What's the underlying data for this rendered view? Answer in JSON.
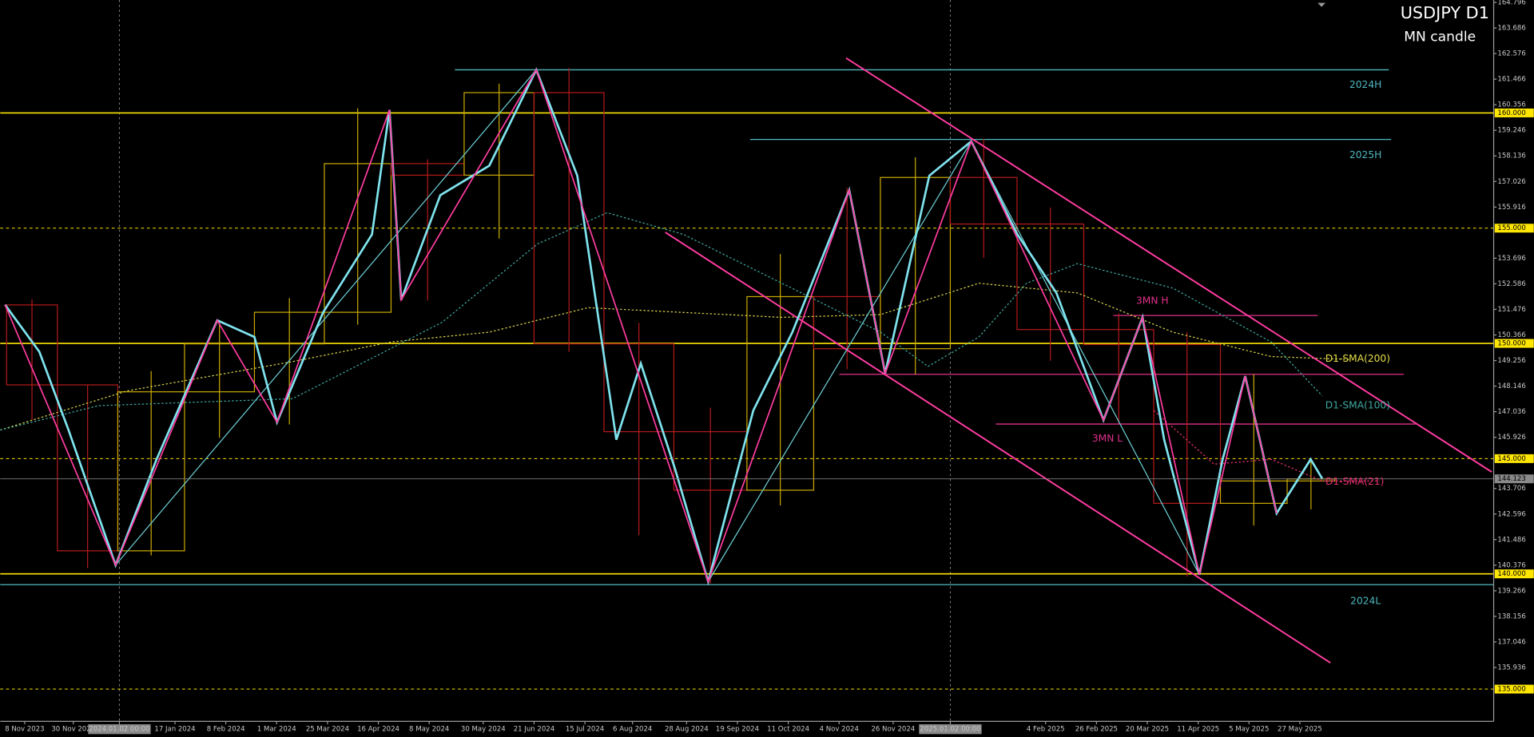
{
  "chart_data": {
    "type": "candlestick",
    "title": "USDJPY D1",
    "subtitle": "MN candle",
    "xlim": [
      0,
      470
    ],
    "ylim": [
      133.6,
      164.9
    ],
    "grid": false,
    "xticks": [
      {
        "value": 7.7,
        "label": "8 Nov 2023"
      },
      {
        "value": 23,
        "label": "30 Nov 2023"
      },
      {
        "value": 37.5,
        "label": "2024.01.02 00:00"
      },
      {
        "value": 55,
        "label": "17 Jan 2024"
      },
      {
        "value": 71,
        "label": "8 Feb 2024"
      },
      {
        "value": 87,
        "label": "1 Mar 2024"
      },
      {
        "value": 103,
        "label": "25 Mar 2024"
      },
      {
        "value": 119,
        "label": "16 Apr 2024"
      },
      {
        "value": 135,
        "label": "8 May 2024"
      },
      {
        "value": 152,
        "label": "30 May 2024"
      },
      {
        "value": 168,
        "label": "21 Jun 2024"
      },
      {
        "value": 184,
        "label": "15 Jul 2024"
      },
      {
        "value": 199,
        "label": "6 Aug 2024"
      },
      {
        "value": 216,
        "label": "28 Aug 2024"
      },
      {
        "value": 232,
        "label": "19 Sep 2024"
      },
      {
        "value": 248,
        "label": "11 Oct 2024"
      },
      {
        "value": 264,
        "label": "4 Nov 2024"
      },
      {
        "value": 281,
        "label": "26 Nov 2024"
      },
      {
        "value": 299,
        "label": "2025.01.02 00:00"
      },
      {
        "value": 329,
        "label": "4 Feb 2025"
      },
      {
        "value": 345,
        "label": "26 Feb 2025"
      },
      {
        "value": 361,
        "label": "20 Mar 2025"
      },
      {
        "value": 377,
        "label": "11 Apr 2025"
      },
      {
        "value": 393,
        "label": "5 May 2025"
      },
      {
        "value": 409,
        "label": "27 May 2025"
      }
    ],
    "yticks": [
      164.796,
      163.686,
      162.576,
      161.466,
      160.356,
      159.246,
      158.136,
      157.026,
      155.916,
      153.696,
      152.586,
      151.476,
      150.366,
      149.256,
      148.146,
      147.036,
      145.926,
      143.706,
      142.596,
      141.486,
      140.376,
      139.266,
      138.156,
      137.046,
      135.936
    ],
    "levels": [
      {
        "value": 160,
        "label": "160.000",
        "style": "solid"
      },
      {
        "value": 155,
        "label": "155.000",
        "style": "dotted"
      },
      {
        "value": 150,
        "label": "150.000",
        "style": "solid"
      },
      {
        "value": 145,
        "label": "145.000",
        "style": "dotted"
      },
      {
        "value": 140,
        "label": "140.000",
        "style": "solid"
      },
      {
        "value": 135,
        "label": "135.000",
        "style": "dotted"
      }
    ],
    "level_color": "#ffe600",
    "current_price": 144.123,
    "candles": {
      "edges": [
        2,
        18,
        37,
        58,
        80,
        102,
        123,
        146,
        168,
        190,
        212,
        235,
        256,
        277,
        299,
        320,
        341,
        363,
        384,
        405,
        420
      ],
      "open": [
        151.67,
        148.2,
        141.0,
        147.9,
        149.98,
        151.35,
        157.8,
        157.3,
        160.88,
        149.98,
        146.17,
        143.63,
        152.03,
        149.77,
        157.2,
        155.18,
        150.6,
        149.95,
        143.06,
        144.03
      ],
      "high": [
        151.91,
        148.2,
        148.8,
        150.88,
        151.97,
        160.2,
        157.99,
        161.27,
        161.95,
        150.89,
        147.21,
        153.88,
        156.75,
        158.08,
        158.87,
        155.89,
        151.3,
        150.49,
        148.65,
        145.0
      ],
      "low": [
        146.67,
        140.25,
        140.8,
        145.9,
        146.48,
        150.81,
        151.86,
        154.55,
        149.63,
        141.68,
        139.58,
        142.97,
        148.88,
        148.65,
        153.72,
        149.25,
        146.54,
        139.89,
        142.1,
        142.8
      ],
      "close": [
        148.2,
        141.0,
        147.9,
        149.98,
        151.35,
        157.8,
        157.3,
        160.88,
        149.98,
        146.17,
        143.63,
        152.03,
        149.77,
        157.2,
        155.18,
        150.6,
        149.95,
        143.06,
        144.03,
        144.12
      ],
      "up_color": "#c8a800",
      "down_color": "#b41a1a"
    },
    "price": {
      "color": "#7fe3ee",
      "x": [
        1.5,
        12.3,
        21.5,
        36.3,
        49.2,
        68.3,
        80.0,
        87.1,
        101.6,
        117.0,
        122.5,
        126.2,
        138.5,
        153.9,
        168.7,
        181.6,
        193.9,
        201.6,
        212.4,
        222.8,
        237.0,
        249.3,
        267.2,
        278.5,
        292.4,
        305.6,
        320.1,
        332.4,
        347.2,
        359.5,
        366.3,
        377.4,
        384.7,
        391.8,
        401.7,
        412.4,
        416.1
      ],
      "values": [
        151.68,
        149.64,
        146.24,
        140.38,
        144.97,
        151.0,
        150.28,
        146.58,
        151.34,
        154.73,
        160.13,
        151.89,
        156.43,
        157.71,
        161.87,
        157.28,
        145.82,
        149.13,
        144.54,
        139.66,
        147.09,
        150.49,
        156.65,
        148.7,
        157.28,
        158.77,
        154.73,
        152.19,
        146.67,
        151.13,
        145.82,
        139.96,
        144.97,
        148.58,
        142.63,
        144.97,
        144.12
      ]
    },
    "zigzag": {
      "color": "#ff3ca0",
      "x": [
        1.5,
        36.3,
        68.3,
        87.1,
        122.5,
        126.2,
        168.7,
        222.8,
        267.2,
        278.5,
        305.6,
        347.2,
        359.5,
        377.4,
        391.8,
        401.7
      ],
      "values": [
        151.68,
        140.38,
        151.0,
        146.58,
        160.13,
        151.89,
        161.87,
        139.66,
        156.65,
        148.7,
        158.77,
        146.67,
        151.13,
        139.96,
        148.58,
        142.63
      ]
    },
    "sma": [
      {
        "name": "D1-SMA(200)",
        "color": "#d6d24a",
        "x": [
          0,
          40,
          92,
          123,
          154,
          185,
          246,
          277,
          308,
          339,
          369,
          400,
          425
        ],
        "values": [
          146.24,
          147.94,
          149.21,
          150.06,
          150.49,
          151.55,
          151.13,
          151.25,
          152.61,
          152.19,
          150.49,
          149.43,
          149.3
        ]
      },
      {
        "name": "D1-SMA(100)",
        "color": "#3fa9a0",
        "x": [
          0,
          31,
          92,
          139,
          169,
          191,
          215,
          246,
          277,
          292,
          308,
          323,
          339,
          369,
          400,
          416
        ],
        "values": [
          146.24,
          147.3,
          147.6,
          150.91,
          154.31,
          155.67,
          154.73,
          152.61,
          150.49,
          149.0,
          150.28,
          152.61,
          153.46,
          152.4,
          150.06,
          147.73
        ]
      },
      {
        "name": "D1-SMA(21)",
        "color": "#e0306e",
        "x": [
          363,
          382,
          400,
          416,
          434
        ],
        "values": [
          147.09,
          144.76,
          144.97,
          144.03,
          144.03
        ]
      }
    ],
    "hlines": [
      {
        "name": "2024H",
        "color": "#4fb8c0",
        "value": 161.87,
        "x": [
          143.1,
          437
        ]
      },
      {
        "name": "2025H",
        "color": "#4fb8c0",
        "value": 158.85,
        "x": [
          236,
          437.7
        ]
      },
      {
        "name": "2024L",
        "color": "#4fb8c0",
        "value": 139.53,
        "x": [
          0,
          470
        ]
      },
      {
        "name": "3MN H",
        "color": "#e0308a",
        "value": 151.21,
        "x": [
          350.3,
          414.6
        ]
      },
      {
        "name": "3MN L",
        "color": "#e0308a",
        "value": 146.5,
        "x": [
          313.3,
          445.4
        ]
      },
      {
        "color": "#e0308a",
        "value": 148.66,
        "x": [
          264.1,
          441.7
        ]
      }
    ],
    "trend_lines": [
      {
        "color": "#ff3ca0",
        "x": [
          266.2,
          469.4
        ],
        "values": [
          162.38,
          144.42
        ]
      },
      {
        "color": "#ff3ca0",
        "x": [
          209.3,
          418.6
        ],
        "values": [
          154.82,
          136.14
        ]
      },
      {
        "color": "#6ccfd6",
        "x": [
          36.3,
          168.7
        ],
        "values": [
          140.38,
          161.87
        ]
      },
      {
        "color": "#6ccfd6",
        "x": [
          222.8,
          305.6
        ],
        "values": [
          139.66,
          158.77
        ]
      },
      {
        "color": "#6ccfd6",
        "x": [
          305.6,
          377.4
        ],
        "values": [
          158.77,
          139.96
        ]
      }
    ]
  }
}
